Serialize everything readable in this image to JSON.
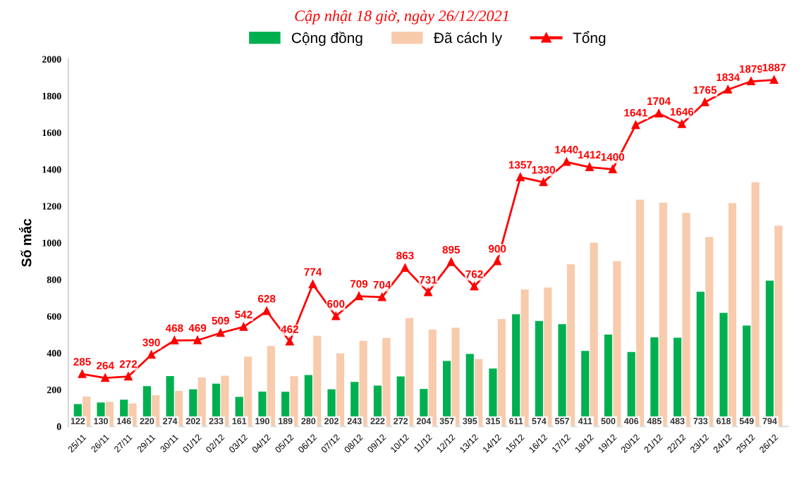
{
  "chart_data": {
    "type": "bar",
    "subtitle": "Cập nhật 18 giờ, ngày 26/12/2021",
    "ylabel": "Số mắc",
    "categories": [
      "25/11",
      "26/11",
      "27/11",
      "29/11",
      "30/11",
      "01/12",
      "02/12",
      "03/12",
      "04/12",
      "05/12",
      "06/12",
      "07/12",
      "08/12",
      "09/12",
      "10/12",
      "11/12",
      "12/12",
      "13/12",
      "14/12",
      "15/12",
      "16/12",
      "17/12",
      "18/12",
      "19/12",
      "20/12",
      "21/12",
      "22/12",
      "23/12",
      "24/12",
      "25/12",
      "26/12"
    ],
    "series": [
      {
        "name": "Cộng đồng",
        "color": "#00b050",
        "values": [
          122,
          130,
          146,
          220,
          274,
          202,
          233,
          161,
          190,
          189,
          280,
          202,
          243,
          222,
          272,
          204,
          357,
          395,
          315,
          611,
          574,
          557,
          411,
          500,
          406,
          485,
          483,
          733,
          618,
          549,
          794
        ],
        "value_labels": [
          "122",
          "130",
          "146",
          "220",
          "274",
          "202",
          "233",
          "161",
          "190",
          "189",
          "280",
          "202",
          "243",
          "222",
          "272",
          "204",
          "357",
          "395",
          "315",
          "611",
          "574",
          "557",
          "411",
          "500",
          "406",
          "485",
          "483",
          "733",
          "618",
          "549",
          "794"
        ]
      },
      {
        "name": "Đã cách ly",
        "color": "#f8cbad",
        "values": [
          163,
          134,
          126,
          170,
          194,
          267,
          276,
          381,
          438,
          273,
          494,
          398,
          466,
          482,
          591,
          527,
          538,
          367,
          585,
          746,
          756,
          883,
          1001,
          900,
          1235,
          1219,
          1163,
          1032,
          1216,
          1330,
          1093
        ]
      },
      {
        "name": "Tổng",
        "type": "line",
        "color": "#ff0000",
        "marker": "triangle",
        "values": [
          285,
          264,
          272,
          390,
          468,
          469,
          509,
          542,
          628,
          462,
          774,
          600,
          709,
          704,
          863,
          731,
          895,
          762,
          900,
          1357,
          1330,
          1440,
          1412,
          1400,
          1641,
          1704,
          1646,
          1765,
          1834,
          1879,
          1887
        ],
        "value_labels": [
          "285",
          "264",
          "272",
          "390",
          "468",
          "469",
          "509",
          "542",
          "628",
          "462",
          "774",
          "600",
          "709",
          "704",
          "863",
          "731",
          "895",
          "762",
          "900",
          "1357",
          "1330",
          "1440",
          "1412",
          "1400",
          "1641",
          "1704",
          "1646",
          "1765",
          "1834",
          "1879",
          "1887"
        ]
      }
    ],
    "ylim": [
      0,
      2000
    ],
    "yticks": [
      0,
      200,
      400,
      600,
      800,
      1000,
      1200,
      1400,
      1600,
      1800,
      2000
    ],
    "grid": false,
    "legend": "top"
  }
}
